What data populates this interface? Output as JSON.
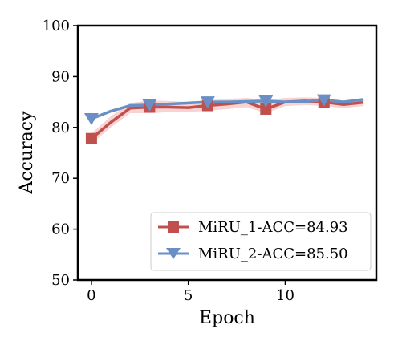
{
  "chart_data": {
    "type": "line",
    "xlabel": "Epoch",
    "ylabel": "Accuracy",
    "xlim": [
      -0.7,
      14.7
    ],
    "ylim": [
      50,
      100
    ],
    "xticks": [
      0,
      5,
      10
    ],
    "yticks": [
      50,
      60,
      70,
      80,
      90,
      100
    ],
    "grid": false,
    "legend_position": "bottom-right",
    "x": [
      0,
      1,
      2,
      3,
      4,
      5,
      6,
      7,
      8,
      9,
      10,
      11,
      12,
      13,
      14
    ],
    "series": [
      {
        "name": "MiRU_1-ACC=84.93",
        "color": "#c0504d",
        "band_color": "#f4b6b4",
        "marker": "square",
        "marker_every": 3,
        "values": [
          77.8,
          81.0,
          83.8,
          84.0,
          84.0,
          83.9,
          84.3,
          84.6,
          85.0,
          83.6,
          85.0,
          85.2,
          85.0,
          84.5,
          84.9
        ],
        "band_upper": [
          78.8,
          82.2,
          84.8,
          85.3,
          85.2,
          85.0,
          85.3,
          85.6,
          85.8,
          85.4,
          85.8,
          85.9,
          85.8,
          85.3,
          85.6
        ],
        "band_lower": [
          76.8,
          80.0,
          82.8,
          82.8,
          83.0,
          83.0,
          83.3,
          83.6,
          84.0,
          82.8,
          84.2,
          84.4,
          84.2,
          83.8,
          84.2
        ]
      },
      {
        "name": "MiRU_2-ACC=85.50",
        "color": "#6a8fc4",
        "marker": "triangle-down",
        "marker_every": 3,
        "values": [
          81.7,
          83.2,
          84.3,
          84.4,
          84.6,
          84.8,
          85.0,
          85.0,
          85.1,
          85.2,
          85.0,
          85.1,
          85.4,
          85.0,
          85.5
        ]
      }
    ]
  }
}
